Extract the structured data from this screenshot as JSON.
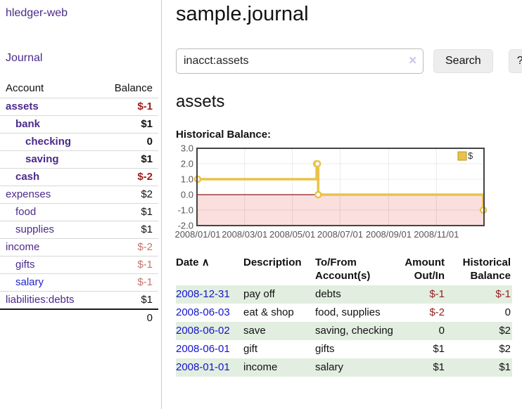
{
  "app": {
    "title": "hledger-web"
  },
  "sidebar": {
    "journal_link": "Journal",
    "table": {
      "account_header": "Account",
      "balance_header": "Balance",
      "rows": [
        {
          "account": "assets",
          "balance": "$-1",
          "level": 1,
          "bold": true,
          "link_color": "purple",
          "balance_class": "neg"
        },
        {
          "account": "bank",
          "balance": "$1",
          "level": 2,
          "bold": true,
          "link_color": "purple",
          "balance_class": "plain"
        },
        {
          "account": "checking",
          "balance": "0",
          "level": 3,
          "bold": true,
          "link_color": "purple",
          "balance_class": "plain"
        },
        {
          "account": "saving",
          "balance": "$1",
          "level": 3,
          "bold": true,
          "link_color": "purple",
          "balance_class": "plain"
        },
        {
          "account": "cash",
          "balance": "$-2",
          "level": 2,
          "bold": true,
          "link_color": "purple",
          "balance_class": "neg"
        },
        {
          "account": "expenses",
          "balance": "$2",
          "level": 1,
          "bold": false,
          "link_color": "purple",
          "balance_class": "plain"
        },
        {
          "account": "food",
          "balance": "$1",
          "level": 2,
          "bold": false,
          "link_color": "purple",
          "balance_class": "plain"
        },
        {
          "account": "supplies",
          "balance": "$1",
          "level": 2,
          "bold": false,
          "link_color": "purple",
          "balance_class": "plain"
        },
        {
          "account": "income",
          "balance": "$-2",
          "level": 1,
          "bold": false,
          "link_color": "purple",
          "balance_class": "negmuted"
        },
        {
          "account": "gifts",
          "balance": "$-1",
          "level": 2,
          "bold": false,
          "link_color": "purple",
          "balance_class": "negmuted"
        },
        {
          "account": "salary",
          "balance": "$-1",
          "level": 2,
          "bold": false,
          "link_color": "blue",
          "balance_class": "negmuted"
        },
        {
          "account": "liabilities:debts",
          "balance": "$1",
          "level": 1,
          "bold": false,
          "link_color": "purple",
          "balance_class": "plain"
        }
      ],
      "total": "0"
    }
  },
  "main": {
    "title": "sample.journal",
    "search": {
      "value": "inacct:assets",
      "clear_icon": "✕",
      "button_label": "Search",
      "help_label": "?"
    },
    "account_heading": "assets",
    "chart_heading": "Historical Balance:"
  },
  "chart_data": {
    "type": "line",
    "step": true,
    "title": "Historical Balance:",
    "series": [
      {
        "name": "$",
        "color": "#e9c24a",
        "points": [
          [
            "2008-01-01",
            1
          ],
          [
            "2008-06-01",
            2
          ],
          [
            "2008-06-02",
            2
          ],
          [
            "2008-06-03",
            0
          ],
          [
            "2008-12-31",
            -1
          ]
        ]
      }
    ],
    "x_range": [
      "2008-01-01",
      "2008-12-31"
    ],
    "xticks": [
      {
        "date": "2008-01-01",
        "label": "2008/01/01"
      },
      {
        "date": "2008-03-01",
        "label": "2008/03/01"
      },
      {
        "date": "2008-05-01",
        "label": "2008/05/01"
      },
      {
        "date": "2008-07-01",
        "label": "2008/07/01"
      },
      {
        "date": "2008-09-01",
        "label": "2008/09/01"
      },
      {
        "date": "2008-11-01",
        "label": "2008/11/01"
      }
    ],
    "ylim": [
      -2,
      3
    ],
    "yticks": [
      -2,
      -1,
      0,
      1,
      2,
      3
    ],
    "ytick_format": "one_decimal",
    "legend_position": "top-right",
    "legend_label": "$",
    "grid": true,
    "colors": {
      "line": "#e9c24a",
      "marker_fill": "#ffffff",
      "negative_region_fill": "#fbdede",
      "zero_line": "#8b1a1a",
      "frame": "#444444",
      "gridline": "rgba(0,0,0,0.08)",
      "tick_text": "#555555"
    }
  },
  "register": {
    "headers": [
      "Date",
      "Description",
      "To/From Account(s)",
      "Amount Out/In",
      "Historical Balance"
    ],
    "sort_arrow": "∧",
    "rows": [
      {
        "date": "2008-12-31",
        "description": "pay off",
        "accounts": "debts",
        "amount": "$-1",
        "balance": "$-1",
        "amount_negative": true,
        "balance_negative": true
      },
      {
        "date": "2008-06-03",
        "description": "eat & shop",
        "accounts": "food, supplies",
        "amount": "$-2",
        "balance": "0",
        "amount_negative": true,
        "balance_negative": false
      },
      {
        "date": "2008-06-02",
        "description": "save",
        "accounts": "saving, checking",
        "amount": "0",
        "balance": "$2",
        "amount_negative": false,
        "balance_negative": false
      },
      {
        "date": "2008-06-01",
        "description": "gift",
        "accounts": "gifts",
        "amount": "$1",
        "balance": "$2",
        "amount_negative": false,
        "balance_negative": false
      },
      {
        "date": "2008-01-01",
        "description": "income",
        "accounts": "salary",
        "amount": "$1",
        "balance": "$1",
        "amount_negative": false,
        "balance_negative": false
      }
    ]
  }
}
